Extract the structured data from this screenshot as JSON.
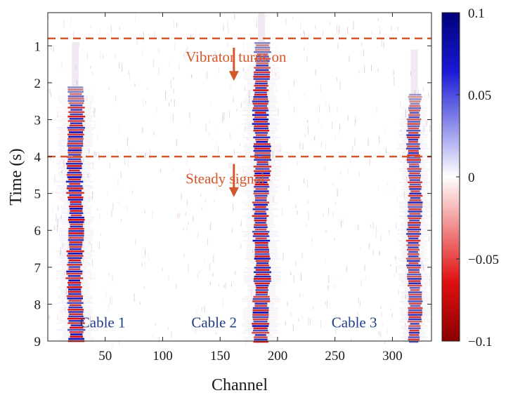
{
  "chart_data": {
    "type": "heatmap",
    "title": "",
    "xlabel": "Channel",
    "ylabel": "Time (s)",
    "xlim": [
      0,
      334
    ],
    "ylim": [
      0.1,
      9.0
    ],
    "y_reversed": true,
    "x_ticks": [
      50,
      100,
      150,
      200,
      250,
      300
    ],
    "y_ticks": [
      1,
      2,
      3,
      4,
      5,
      6,
      7,
      8,
      9
    ],
    "colorbar": {
      "min": -0.1,
      "max": 0.1,
      "ticks": [
        0.1,
        0.05,
        0,
        -0.05,
        -0.1
      ],
      "tick_labels": [
        "0.1",
        "0.05",
        "0",
        "−0.05",
        "−0.1"
      ],
      "colormap": "red-white-blue",
      "negative_color": "#8b0000",
      "zero_color": "#ffffff",
      "positive_color": "#00007a"
    },
    "signal_bands": [
      {
        "name": "Cable 1",
        "channel_center": 24,
        "half_width": 6,
        "t_start": 2.1,
        "t_end": 9.0,
        "peak": 0.1
      },
      {
        "name": "Cable 2",
        "channel_center": 186,
        "half_width": 6,
        "t_start": 0.9,
        "t_end": 9.0,
        "peak": 0.1
      },
      {
        "name": "Cable 3",
        "channel_center": 319,
        "half_width": 5,
        "t_start": 2.3,
        "t_end": 9.0,
        "peak": 0.08
      }
    ],
    "reference_lines": [
      {
        "time": 0.8,
        "label": "Vibrator turns on",
        "style": "dashed",
        "color": "#d4572a",
        "arrow_channel": 162,
        "arrow_t_start": 1.05,
        "arrow_t_end": 1.95
      },
      {
        "time": 4.0,
        "label": "Steady signal",
        "style": "dashed",
        "color": "#d4572a",
        "arrow_channel": 162,
        "arrow_t_start": 4.2,
        "arrow_t_end": 5.1
      }
    ],
    "annotations": [
      {
        "text": "Vibrator turns on",
        "channel": 120,
        "time": 1.3,
        "color": "#d4572a"
      },
      {
        "text": "Steady signal",
        "channel": 120,
        "time": 4.6,
        "color": "#d4572a"
      },
      {
        "text": "Cable 1",
        "channel": 28,
        "time": 8.5,
        "color": "#1f3f8a"
      },
      {
        "text": "Cable 2",
        "channel": 125,
        "time": 8.5,
        "color": "#1f3f8a"
      },
      {
        "text": "Cable 3",
        "channel": 247,
        "time": 8.5,
        "color": "#1f3f8a"
      }
    ]
  }
}
